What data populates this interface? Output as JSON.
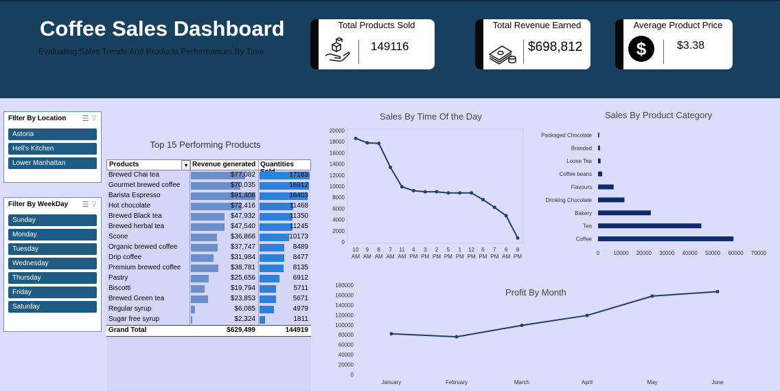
{
  "header": {
    "title": "Coffee Sales Dashboard",
    "subtitle": "Evaluating Sales Trends And Products Performances By Time"
  },
  "kpis": [
    {
      "label": "Total Products Sold",
      "value": "149116",
      "icon": "boxes-hand-icon"
    },
    {
      "label": "Total Revenue Earned",
      "value": "$698,812",
      "icon": "money-stack-icon"
    },
    {
      "label": "Average Product  Price",
      "value": "$3.38",
      "icon": "dollar-circle-icon"
    }
  ],
  "location_filter": {
    "title": "FIlter By Location",
    "items": [
      "Astoria",
      "Hell's Kitchen",
      "Lower Manhattan"
    ]
  },
  "weekday_filter": {
    "title": "Filter By WeekDay",
    "items": [
      "Sunday",
      "Monday",
      "Tuesday",
      "Wednesday",
      "Thursday",
      "Friday",
      "Saturday"
    ]
  },
  "colors": {
    "header": "#17405e",
    "background": "#dcdcfb",
    "accent": "#1f3f6e",
    "slicer_button": "#1f5a82",
    "revenue_bar": "#6d8fc9",
    "quantity_bar": "#2f80d8",
    "category_bar": "#0f2a6b"
  },
  "chart_data": [
    {
      "type": "table",
      "title": "Top 15 Performing Products",
      "columns": [
        "Products",
        "Revenue generated",
        "Quantities Sold"
      ],
      "rows": [
        {
          "product": "Brewed Chai tea",
          "revenue": "$77,082",
          "revenue_value": 77082,
          "qty": "17183",
          "qty_value": 17183
        },
        {
          "product": "Gourmet brewed coffee",
          "revenue": "$70,035",
          "revenue_value": 70035,
          "qty": "16912",
          "qty_value": 16912
        },
        {
          "product": "Barista Espresso",
          "revenue": "$91,406",
          "revenue_value": 91406,
          "qty": "16403",
          "qty_value": 16403
        },
        {
          "product": "Hot chocolate",
          "revenue": "$72,416",
          "revenue_value": 72416,
          "qty": "11468",
          "qty_value": 11468
        },
        {
          "product": "Brewed Black tea",
          "revenue": "$47,932",
          "revenue_value": 47932,
          "qty": "11350",
          "qty_value": 11350
        },
        {
          "product": "Brewed herbal tea",
          "revenue": "$47,540",
          "revenue_value": 47540,
          "qty": "11245",
          "qty_value": 11245
        },
        {
          "product": "Scone",
          "revenue": "$36,866",
          "revenue_value": 36866,
          "qty": "10173",
          "qty_value": 10173
        },
        {
          "product": "Organic brewed coffee",
          "revenue": "$37,747",
          "revenue_value": 37747,
          "qty": "8489",
          "qty_value": 8489
        },
        {
          "product": "Drip coffee",
          "revenue": "$31,984",
          "revenue_value": 31984,
          "qty": "8477",
          "qty_value": 8477
        },
        {
          "product": "Premium brewed coffee",
          "revenue": "$38,781",
          "revenue_value": 38781,
          "qty": "8135",
          "qty_value": 8135
        },
        {
          "product": "Pastry",
          "revenue": "$25,656",
          "revenue_value": 25656,
          "qty": "6912",
          "qty_value": 6912
        },
        {
          "product": "Biscotti",
          "revenue": "$19,794",
          "revenue_value": 19794,
          "qty": "5711",
          "qty_value": 5711
        },
        {
          "product": "Brewed Green tea",
          "revenue": "$23,853",
          "revenue_value": 23853,
          "qty": "5671",
          "qty_value": 5671
        },
        {
          "product": "Regular syrup",
          "revenue": "$6,085",
          "revenue_value": 6085,
          "qty": "4979",
          "qty_value": 4979
        },
        {
          "product": "Sugar free syrup",
          "revenue": "$2,324",
          "revenue_value": 2324,
          "qty": "1811",
          "qty_value": 1811
        }
      ],
      "grand_total": {
        "label": "Grand Total",
        "revenue": "$629,499",
        "qty": "144919"
      }
    },
    {
      "type": "line",
      "title": "Sales By Time Of the Day",
      "categories": [
        "10 AM",
        "9 AM",
        "8 AM",
        "7 AM",
        "11 AM",
        "4 PM",
        "3 PM",
        "2 PM",
        "5 PM",
        "1 PM",
        "12 PM",
        "6 PM",
        "7 PM",
        "6 AM",
        "8 PM"
      ],
      "values": [
        18600,
        17800,
        17700,
        13400,
        9900,
        9200,
        9000,
        9000,
        8800,
        8800,
        8800,
        7600,
        6200,
        4700,
        700
      ],
      "ylim": [
        0,
        20000
      ],
      "yticks": [
        0,
        2000,
        4000,
        6000,
        8000,
        10000,
        12000,
        14000,
        16000,
        18000,
        20000
      ],
      "grid": false
    },
    {
      "type": "bar",
      "orientation": "horizontal",
      "title": "Sales By Product Category",
      "categories": [
        "Packaged Chocolate",
        "Branded",
        "Loose Tea",
        "Coffee beans",
        "Flavours",
        "Drinking Chocolate",
        "Bakery",
        "Tea",
        "Coffee"
      ],
      "values": [
        500,
        800,
        1100,
        1800,
        6800,
        11500,
        23000,
        45000,
        59000
      ],
      "xlim": [
        0,
        70000
      ],
      "xticks": [
        "0",
        "10000",
        "20000",
        "30000",
        "40000",
        "50000",
        "60000",
        "70000"
      ],
      "grid": false
    },
    {
      "type": "line",
      "title": "Profit By Month",
      "categories": [
        "January",
        "February",
        "March",
        "April",
        "May",
        "June"
      ],
      "values": [
        82000,
        76000,
        99000,
        119000,
        158000,
        167000
      ],
      "ylim": [
        0,
        180000
      ],
      "yticks": [
        0,
        20000,
        40000,
        60000,
        80000,
        100000,
        120000,
        140000,
        160000,
        180000
      ],
      "grid": false
    }
  ]
}
